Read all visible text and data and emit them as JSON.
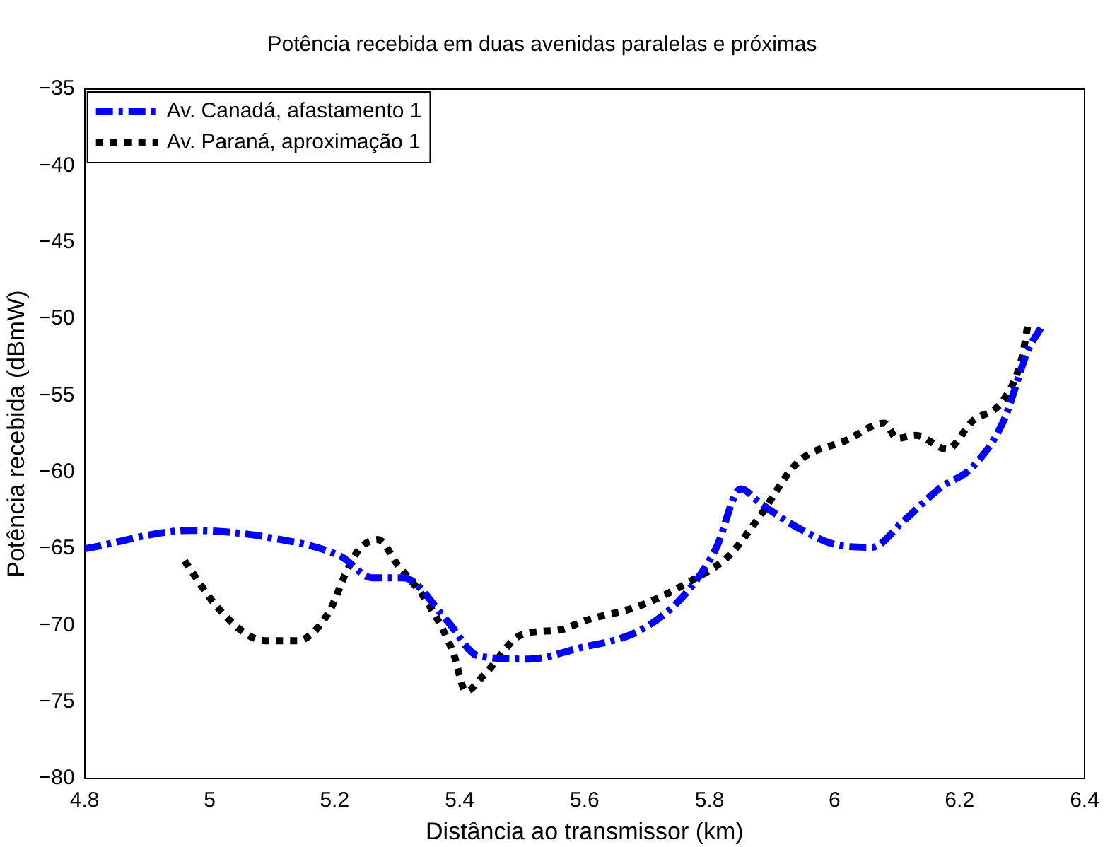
{
  "chart_data": {
    "type": "line",
    "title": "Potência recebida em duas avenidas paralelas e próximas",
    "xlabel": "Distância ao transmissor (km)",
    "ylabel": "Potência recebida (dBmW)",
    "xlim": [
      4.8,
      6.4
    ],
    "xticks": [
      4.8,
      5,
      5.2,
      5.4,
      5.6,
      5.8,
      6,
      6.2,
      6.4
    ],
    "ylim": [
      -80,
      -35
    ],
    "yticks": [
      -80,
      -75,
      -70,
      -65,
      -60,
      -55,
      -50,
      -45,
      -40,
      -35
    ],
    "grid": false,
    "legend": "top left",
    "marker": "none",
    "series": [
      {
        "name": "Av. Canadá, afastamento 1",
        "color": "#0000ff",
        "line_style": "dashed",
        "x": [
          4.8,
          4.97,
          5.1,
          5.21,
          5.26,
          5.31,
          5.38,
          5.43,
          5.51,
          5.59,
          5.69,
          5.76,
          5.81,
          5.85,
          5.88,
          5.94,
          6.01,
          6.06,
          6.11,
          6.17,
          6.22,
          6.27,
          6.31,
          6.33
        ],
        "values": [
          -65,
          -63.8,
          -64.3,
          -65.5,
          -66.9,
          -66.9,
          -69.7,
          -72,
          -72.2,
          -71.5,
          -70.3,
          -68,
          -65,
          -61.1,
          -62,
          -63.6,
          -64.8,
          -64.9,
          -63.2,
          -61,
          -59.7,
          -56.7,
          -52,
          -50.6
        ]
      },
      {
        "name": "Av. Paraná, aproximação 1",
        "color": "#000000",
        "line_style": "dotted",
        "x": [
          4.96,
          5.01,
          5.06,
          5.09,
          5.14,
          5.19,
          5.22,
          5.24,
          5.27,
          5.3,
          5.35,
          5.39,
          5.41,
          5.44,
          5.5,
          5.56,
          5.6,
          5.69,
          5.77,
          5.83,
          5.88,
          5.94,
          6.02,
          6.08,
          6.1,
          6.13,
          6.18,
          6.22,
          6.27,
          6.3,
          6.31
        ],
        "values": [
          -65.8,
          -68.7,
          -70.6,
          -71,
          -71,
          -69.2,
          -66.4,
          -65,
          -64.4,
          -66,
          -68.6,
          -71.8,
          -74.3,
          -73.2,
          -70.6,
          -70.3,
          -69.7,
          -68.7,
          -67.1,
          -65.5,
          -62.9,
          -59.4,
          -57.9,
          -56.8,
          -57.8,
          -57.6,
          -58.5,
          -56.7,
          -55.3,
          -52.5,
          -50.2
        ]
      }
    ]
  }
}
